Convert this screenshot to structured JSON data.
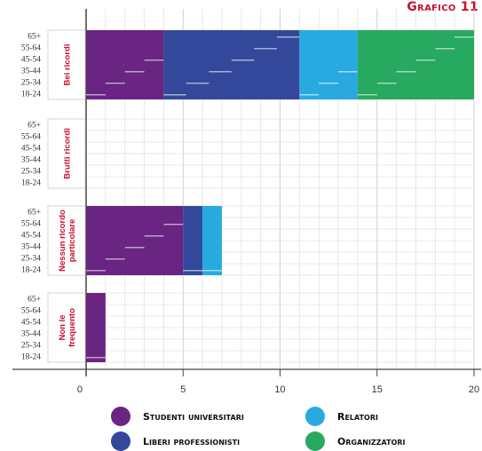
{
  "chart_data": {
    "type": "bar",
    "orientation": "horizontal",
    "stacked": true,
    "title": "Grafico 11",
    "xlim": [
      0,
      20
    ],
    "xticks": [
      0,
      5,
      10,
      15,
      20
    ],
    "grid": true,
    "legend_position": "bottom",
    "age_labels": [
      "65+",
      "55-64",
      "45-54",
      "35-44",
      "25-34",
      "18-24"
    ],
    "groups": [
      {
        "label": "Bei ricordi",
        "stack": [
          {
            "series": "Studenti universitari",
            "value": 4
          },
          {
            "series": "Liberi professionisti",
            "value": 7
          },
          {
            "series": "Relatori",
            "value": 3
          },
          {
            "series": "Organizzatori",
            "value": 6
          }
        ]
      },
      {
        "label": "Brutti ricordi",
        "stack": []
      },
      {
        "label": "Nessun ricordo particolare",
        "stack": [
          {
            "series": "Studenti universitari",
            "value": 5
          },
          {
            "series": "Liberi professionisti",
            "value": 1
          },
          {
            "series": "Relatori",
            "value": 1
          }
        ]
      },
      {
        "label": "Non le frequento",
        "stack": [
          {
            "series": "Studenti universitari",
            "value": 1
          }
        ]
      }
    ],
    "series": [
      {
        "name": "Studenti universitari",
        "color": "#6A2482"
      },
      {
        "name": "Liberi professionisti",
        "color": "#33489A"
      },
      {
        "name": "Relatori",
        "color": "#28AAE1"
      },
      {
        "name": "Organizzatori",
        "color": "#27A95F"
      }
    ]
  }
}
